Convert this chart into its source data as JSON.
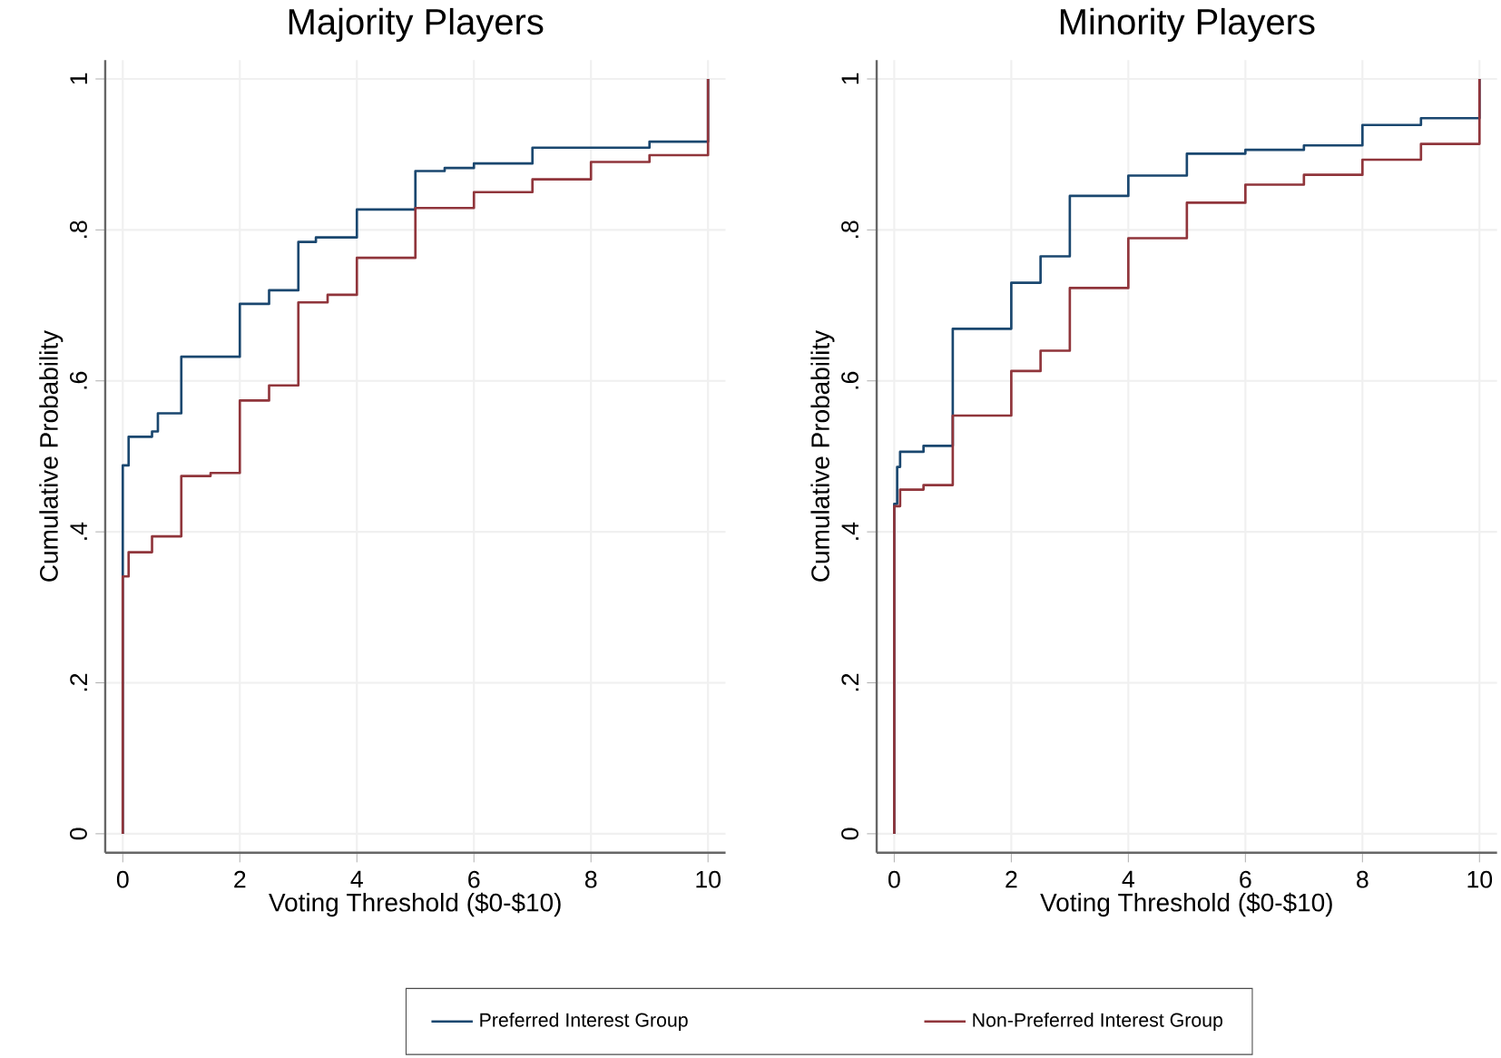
{
  "chart_data": [
    {
      "type": "step",
      "title": "Majority Players",
      "xlabel": "Voting Threshold ($0-$10)",
      "ylabel": "Cumulative Probability",
      "xlim": [
        -0.3,
        10.3
      ],
      "ylim": [
        -0.025,
        1.025
      ],
      "xticks": [
        0,
        2,
        4,
        6,
        8,
        10
      ],
      "yticks": [
        0,
        {
          "value": 0.2,
          "label": ".2"
        },
        {
          "value": 0.4,
          "label": ".4"
        },
        {
          "value": 0.6,
          "label": ".6"
        },
        {
          "value": 0.8,
          "label": ".8"
        },
        1
      ],
      "grid": true,
      "legend": "bottom",
      "series": [
        {
          "name": "Preferred Interest Group",
          "color": "#1a476f",
          "x": [
            0,
            0,
            0.1,
            0.5,
            0.6,
            1,
            2,
            2.5,
            3,
            3.3,
            4,
            5,
            5.5,
            6,
            7,
            9,
            10
          ],
          "values": [
            0,
            0.488,
            0.526,
            0.533,
            0.557,
            0.632,
            0.702,
            0.72,
            0.784,
            0.79,
            0.827,
            0.878,
            0.882,
            0.888,
            0.909,
            0.917,
            1
          ]
        },
        {
          "name": "Non-Preferred Interest Group",
          "color": "#90353b",
          "x": [
            0,
            0,
            0.1,
            0.5,
            1,
            1.5,
            2,
            2.5,
            3,
            3.5,
            4,
            5,
            6,
            7,
            8,
            9,
            10
          ],
          "values": [
            0,
            0.341,
            0.373,
            0.394,
            0.474,
            0.478,
            0.574,
            0.594,
            0.704,
            0.714,
            0.763,
            0.829,
            0.85,
            0.867,
            0.89,
            0.899,
            1
          ]
        }
      ]
    },
    {
      "type": "step",
      "title": "Minority Players",
      "xlabel": "Voting Threshold ($0-$10)",
      "ylabel": "Cumulative Probability",
      "xlim": [
        -0.3,
        10.3
      ],
      "ylim": [
        -0.025,
        1.025
      ],
      "xticks": [
        0,
        2,
        4,
        6,
        8,
        10
      ],
      "yticks": [
        0,
        {
          "value": 0.2,
          "label": ".2"
        },
        {
          "value": 0.4,
          "label": ".4"
        },
        {
          "value": 0.6,
          "label": ".6"
        },
        {
          "value": 0.8,
          "label": ".8"
        },
        1
      ],
      "grid": true,
      "series": [
        {
          "color": "#1a476f",
          "x": [
            0,
            0,
            0.05,
            0.1,
            0.5,
            1,
            2,
            2.5,
            3,
            4,
            5,
            6,
            7,
            8,
            9,
            10
          ],
          "values": [
            0,
            0.437,
            0.486,
            0.506,
            0.514,
            0.669,
            0.73,
            0.765,
            0.845,
            0.872,
            0.901,
            0.906,
            0.912,
            0.939,
            0.948,
            1
          ]
        },
        {
          "color": "#90353b",
          "x": [
            0,
            0,
            0.1,
            0.5,
            1,
            2,
            2.5,
            3,
            4,
            5,
            6,
            7,
            8,
            9,
            10
          ],
          "values": [
            0,
            0.434,
            0.456,
            0.462,
            0.554,
            0.613,
            0.64,
            0.723,
            0.789,
            0.836,
            0.86,
            0.873,
            0.893,
            0.914,
            1
          ]
        }
      ]
    }
  ]
}
